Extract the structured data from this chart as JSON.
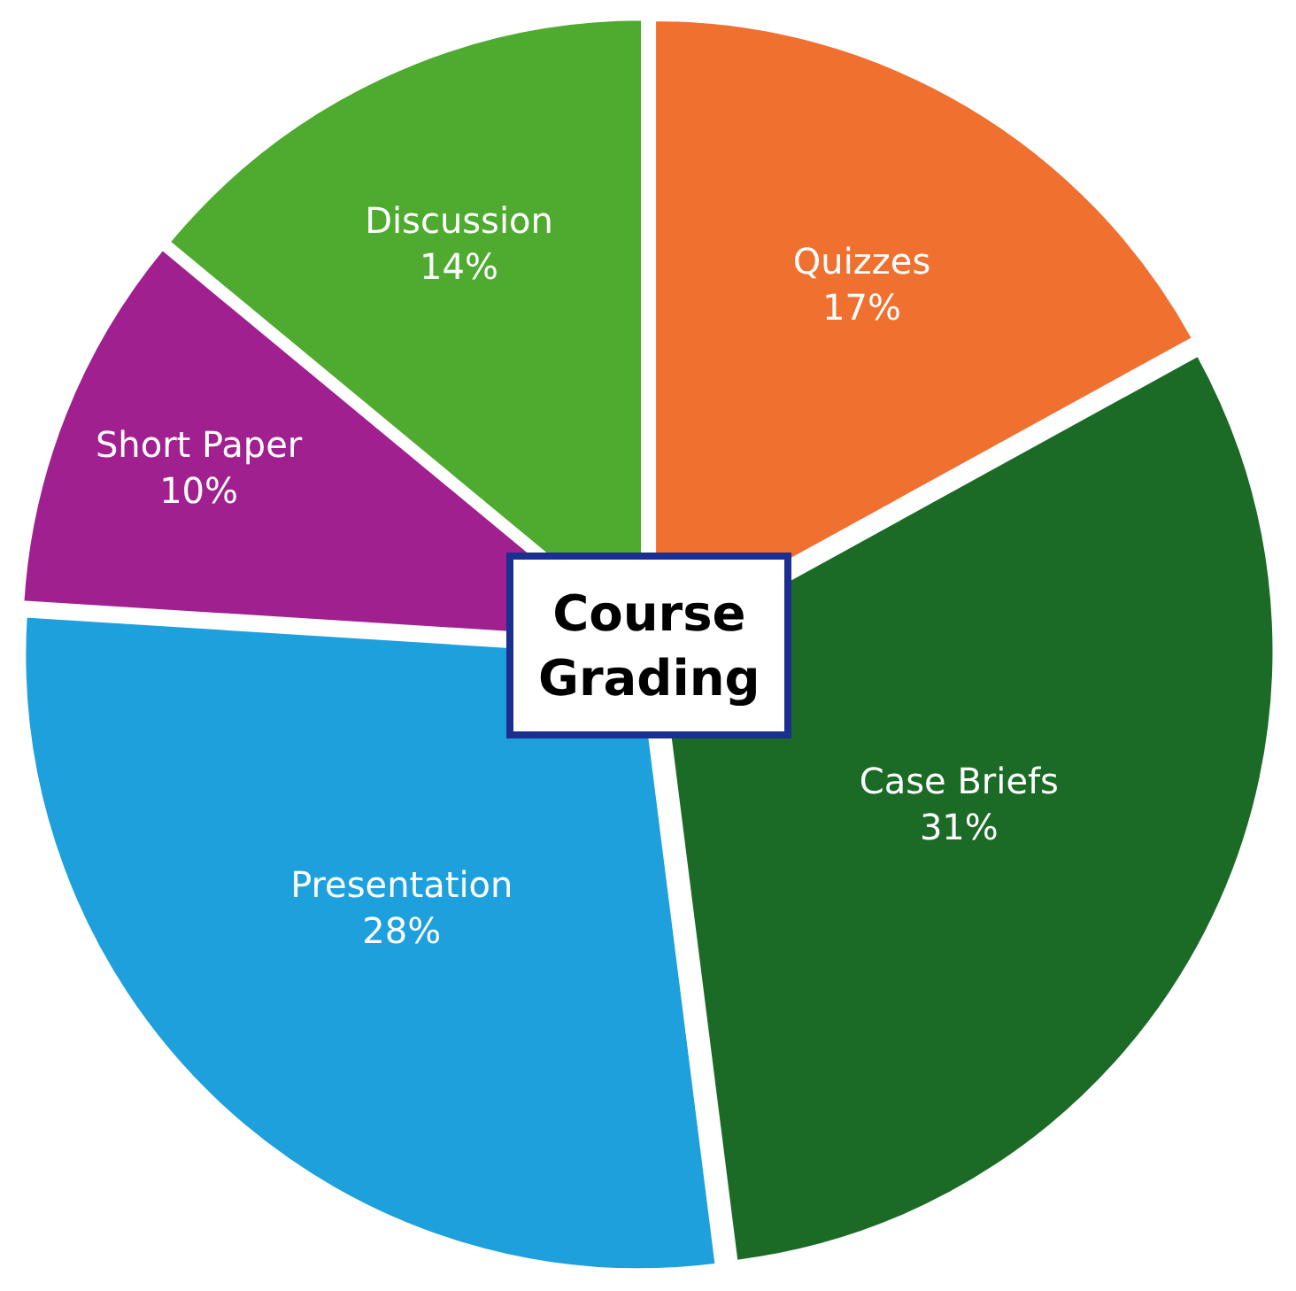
{
  "chart_data": {
    "type": "pie",
    "title": "Course Grading",
    "categories": [
      "Quizzes",
      "Case Briefs",
      "Presentation",
      "Short Paper",
      "Discussion"
    ],
    "values": [
      17,
      31,
      28,
      10,
      14
    ],
    "value_labels": [
      "17%",
      "31%",
      "28%",
      "10%",
      "14%"
    ],
    "colors": [
      "#f07030",
      "#1b6b27",
      "#1ea0dc",
      "#a02090",
      "#4faa30"
    ],
    "legend": false
  }
}
